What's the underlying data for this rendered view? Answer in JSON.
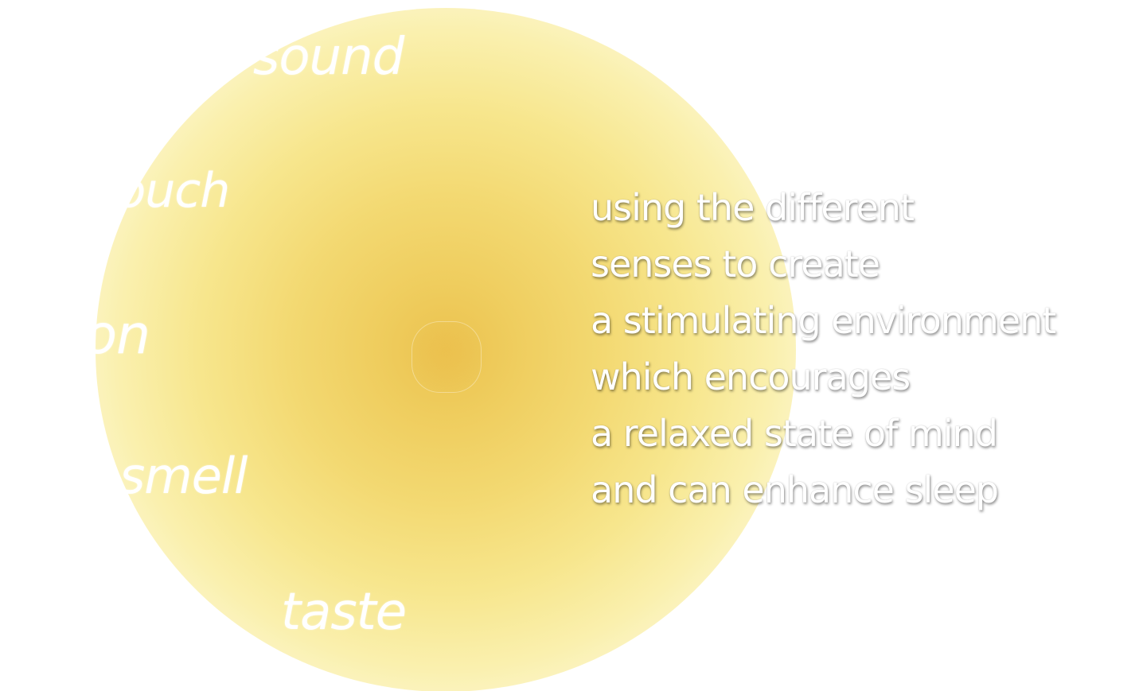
{
  "senses": {
    "sound": "sound",
    "touch": "touch",
    "vision": "vision",
    "smell": "smell",
    "taste": "taste"
  },
  "statement": {
    "lines": [
      "using the different",
      "senses to create",
      "a stimulating  environment",
      "which encourages",
      "a relaxed state of mind",
      "and can enhance sleep"
    ]
  },
  "colors": {
    "glow_center": "#ebc24f",
    "glow_edge": "#fdf8d6",
    "text": "#ffffff",
    "background": "#ffffff"
  }
}
